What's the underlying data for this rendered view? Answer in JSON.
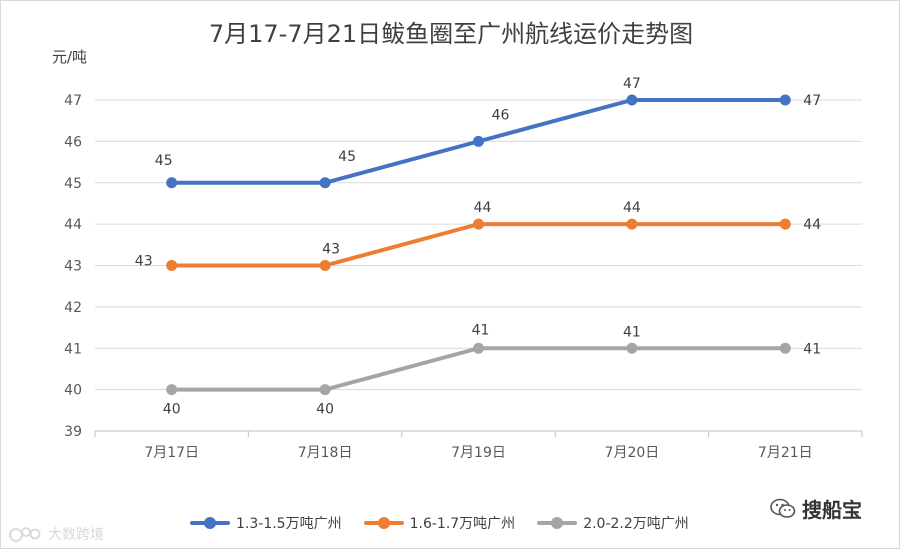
{
  "chart_data": {
    "type": "line",
    "title": "7月17-7月21日鲅鱼圈至广州航线运价走势图",
    "ylabel": "元/吨",
    "xlabel": "",
    "categories": [
      "7月17日",
      "7月18日",
      "7月19日",
      "7月20日",
      "7月21日"
    ],
    "ylim": [
      39,
      47
    ],
    "yticks": [
      39,
      40,
      41,
      42,
      43,
      44,
      45,
      46,
      47
    ],
    "grid": true,
    "legend_position": "bottom",
    "series": [
      {
        "name": "1.3-1.5万吨广州",
        "values": [
          45,
          45,
          46,
          47,
          47
        ],
        "color": "#4472c4"
      },
      {
        "name": "1.6-1.7万吨广州",
        "values": [
          43,
          43,
          44,
          44,
          44
        ],
        "color": "#ed7d31"
      },
      {
        "name": "2.0-2.2万吨广州",
        "values": [
          40,
          40,
          41,
          41,
          41
        ],
        "color": "#a5a5a5"
      }
    ]
  },
  "watermarks": {
    "right_text": "搜船宝",
    "left_text": "大数跨境",
    "right_icon": "wechat-icon",
    "left_icon": "bubble-logo-icon"
  }
}
